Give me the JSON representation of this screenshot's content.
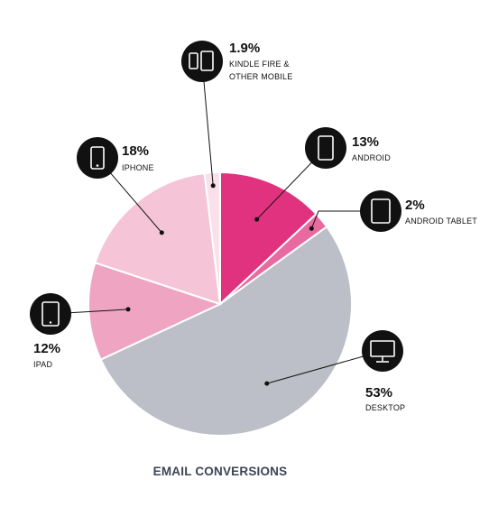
{
  "chart_data": {
    "type": "pie",
    "title": "EMAIL CONVERSIONS",
    "slices": [
      {
        "label": "ANDROID",
        "value": 13,
        "display": "13%",
        "color": "#e0327e",
        "icon": "smartphone-icon"
      },
      {
        "label": "ANDROID TABLET",
        "value": 2,
        "display": "2%",
        "color": "#e86aa0",
        "icon": "tablet-icon"
      },
      {
        "label": "DESKTOP",
        "value": 53,
        "display": "53%",
        "color": "#bcbfc8",
        "icon": "monitor-icon"
      },
      {
        "label": "IPAD",
        "value": 12,
        "display": "12%",
        "color": "#efa5c1",
        "icon": "tablet-icon"
      },
      {
        "label": "IPHONE",
        "value": 18,
        "display": "18%",
        "color": "#f5c4d6",
        "icon": "smartphone-icon"
      },
      {
        "label": "KINDLE FIRE & OTHER MOBILE",
        "label_lines": [
          "KINDLE FIRE &",
          "OTHER MOBILE"
        ],
        "value": 1.9,
        "display": "1.9%",
        "color": "#f9e0ea",
        "icon": "phone-tablet-icon"
      }
    ]
  }
}
